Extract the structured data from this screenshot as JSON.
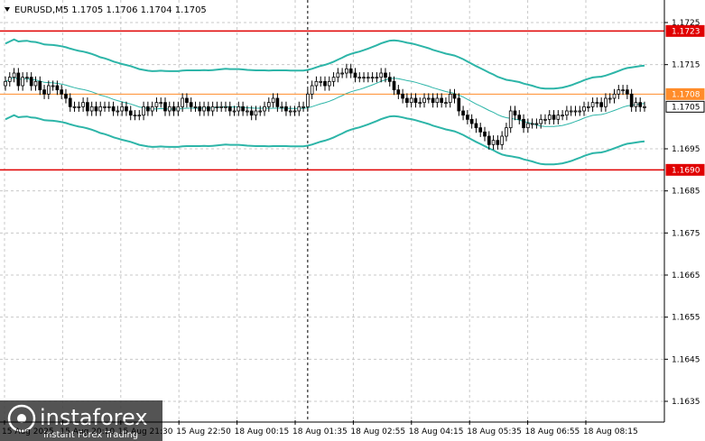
{
  "header": {
    "symbol_line": "EURUSD,M5  1.1705 1.1706 1.1704 1.1705"
  },
  "watermark": {
    "brand": "instaforex",
    "tagline": "Instant Forex Trading"
  },
  "colors": {
    "level_line": "#e00000",
    "price_line": "#ff8c2a",
    "band": "#2db5a8",
    "ma": "#2db5a8",
    "candle": "#000000",
    "grid": "#c8c8c8",
    "tag_red_bg": "#e00000",
    "tag_orange_bg": "#ff8c2a",
    "tag_current_bg": "#ffffff"
  },
  "chart_data": {
    "type": "candlestick",
    "symbol": "EURUSD",
    "timeframe": "M5",
    "ohlc_current": {
      "open": 1.1705,
      "high": 1.1706,
      "low": 1.1704,
      "close": 1.1705
    },
    "y_ticks": [
      "1.1725",
      "1.1715",
      "1.1695",
      "1.1685",
      "1.1675",
      "1.1665",
      "1.1655",
      "1.1645",
      "1.1635"
    ],
    "x_ticks": [
      "15 Aug 2025",
      "15 Aug 20:10",
      "15 Aug 21:30",
      "15 Aug 22:50",
      "18 Aug 00:15",
      "18 Aug 01:35",
      "18 Aug 02:55",
      "18 Aug 04:15",
      "18 Aug 05:35",
      "18 Aug 06:55",
      "18 Aug 08:15"
    ],
    "ylim": [
      1.16305,
      1.17295
    ],
    "levels": [
      {
        "label": "1.1723",
        "value": 1.1723,
        "kind": "resistance"
      },
      {
        "label": "1.1690",
        "value": 1.169,
        "kind": "support"
      }
    ],
    "price_line": {
      "label": "1.1708",
      "value": 1.1708
    },
    "current_price": {
      "label": "1.1705",
      "value": 1.1705
    },
    "session_separator_index": 70,
    "closes": [
      1.1711,
      1.1712,
      1.1713,
      1.171,
      1.1712,
      1.1712,
      1.171,
      1.1711,
      1.1709,
      1.1708,
      1.171,
      1.171,
      1.1709,
      1.1708,
      1.1707,
      1.1705,
      1.1705,
      1.1705,
      1.1706,
      1.1704,
      1.1705,
      1.1704,
      1.1705,
      1.1705,
      1.1705,
      1.1704,
      1.1704,
      1.1705,
      1.1704,
      1.1703,
      1.1703,
      1.1703,
      1.1705,
      1.1704,
      1.1705,
      1.1706,
      1.1706,
      1.1704,
      1.1705,
      1.1704,
      1.1705,
      1.1707,
      1.1706,
      1.1705,
      1.1705,
      1.1704,
      1.1705,
      1.1704,
      1.1705,
      1.1705,
      1.1705,
      1.1705,
      1.1704,
      1.1704,
      1.1705,
      1.1704,
      1.1704,
      1.1703,
      1.1704,
      1.1704,
      1.1705,
      1.1706,
      1.1707,
      1.1705,
      1.1705,
      1.1704,
      1.1704,
      1.1704,
      1.1705,
      1.1705,
      1.1708,
      1.171,
      1.1711,
      1.1711,
      1.171,
      1.1711,
      1.1712,
      1.1713,
      1.1713,
      1.1714,
      1.1713,
      1.1712,
      1.1712,
      1.1712,
      1.1712,
      1.1712,
      1.1712,
      1.1713,
      1.1712,
      1.1711,
      1.1709,
      1.1708,
      1.1707,
      1.1706,
      1.1707,
      1.1706,
      1.1706,
      1.1707,
      1.1707,
      1.1706,
      1.1707,
      1.1706,
      1.1706,
      1.1708,
      1.1707,
      1.1704,
      1.1703,
      1.1702,
      1.1701,
      1.17,
      1.1699,
      1.1698,
      1.1696,
      1.1697,
      1.1696,
      1.1698,
      1.17,
      1.1704,
      1.1703,
      1.1702,
      1.17,
      1.1701,
      1.1701,
      1.1701,
      1.1702,
      1.1702,
      1.1703,
      1.1702,
      1.1703,
      1.1703,
      1.1704,
      1.1704,
      1.1704,
      1.1704,
      1.1705,
      1.1705,
      1.1706,
      1.1706,
      1.1705,
      1.1707,
      1.1707,
      1.1708,
      1.1709,
      1.1709,
      1.1708,
      1.1705,
      1.1706,
      1.1705,
      1.1705
    ]
  }
}
